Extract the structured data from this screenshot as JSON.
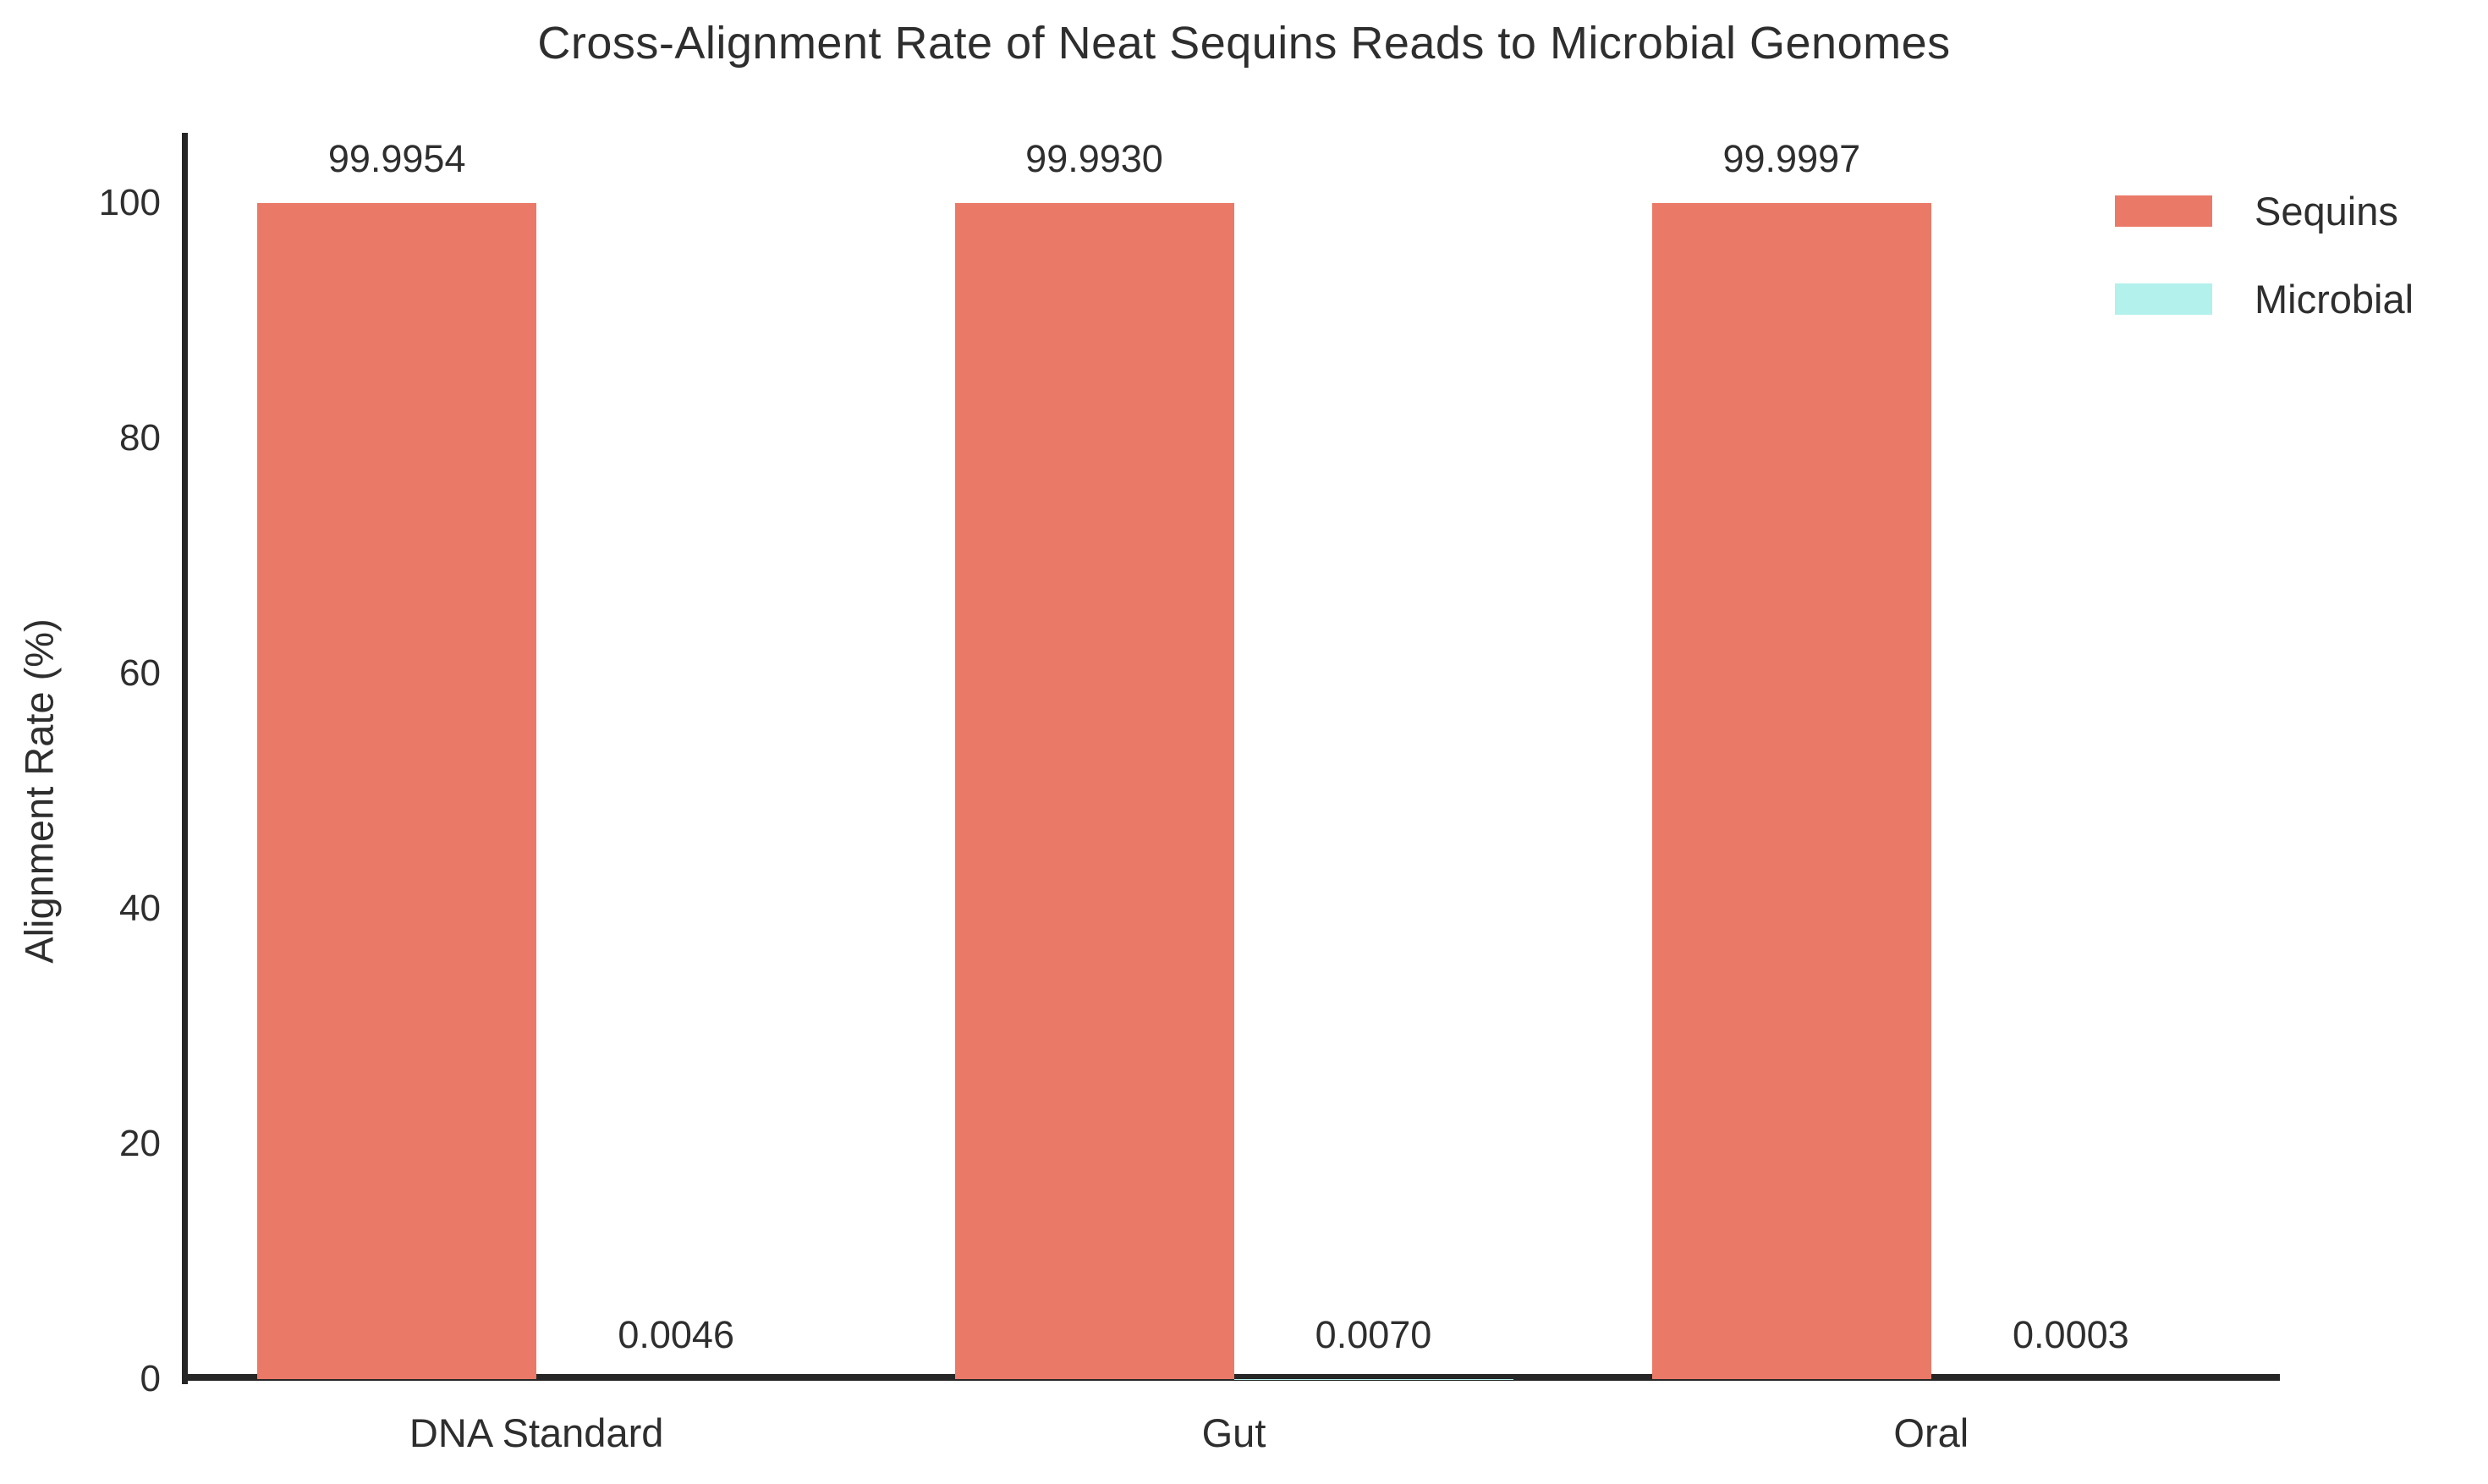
{
  "chart_data": {
    "type": "bar",
    "title": "Cross-Alignment Rate of Neat Sequins Reads to Microbial Genomes",
    "categories": [
      "DNA Standard",
      "Gut",
      "Oral"
    ],
    "series": [
      {
        "name": "Sequins",
        "color": "#EB7968",
        "values": [
          99.9954,
          99.993,
          99.9997
        ],
        "value_labels": [
          "99.9954",
          "99.9930",
          "99.9997"
        ]
      },
      {
        "name": "Microbial",
        "color": "#B2F1EC",
        "values": [
          0.0046,
          0.007,
          0.0003
        ],
        "value_labels": [
          "0.0046",
          "0.0070",
          "0.0003"
        ]
      }
    ],
    "xlabel": "",
    "ylabel": "Alignment Rate (%)",
    "yticks": [
      0,
      20,
      40,
      60,
      80,
      100
    ],
    "ylim": [
      0,
      106
    ],
    "grid": false,
    "legend_position": "top-right",
    "bar_value_labels": true
  },
  "colors": {
    "background": "#ffffff",
    "axis": "#262626",
    "text": "#2e2e2e",
    "sequins": "#EB7968",
    "microbial": "#B2F1EC"
  }
}
